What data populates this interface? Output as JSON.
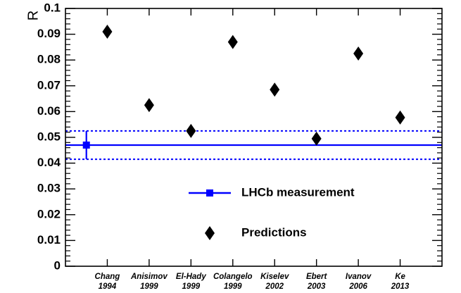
{
  "chart_data": {
    "type": "scatter",
    "title": "",
    "xlabel": "",
    "ylabel": "R",
    "ylim": [
      0,
      0.1
    ],
    "yticks": [
      "0",
      "0.01",
      "0.02",
      "0.03",
      "0.04",
      "0.05",
      "0.06",
      "0.07",
      "0.08",
      "0.09",
      "0.1"
    ],
    "categories": [
      {
        "name": "Chang",
        "year": "1994"
      },
      {
        "name": "Anisimov",
        "year": "1999"
      },
      {
        "name": "El-Hady",
        "year": "1999"
      },
      {
        "name": "Colangelo",
        "year": "1999"
      },
      {
        "name": "Kiselev",
        "year": "2002"
      },
      {
        "name": "Ebert",
        "year": "2003"
      },
      {
        "name": "Ivanov",
        "year": "2006"
      },
      {
        "name": "Ke",
        "year": "2013"
      }
    ],
    "series": [
      {
        "name": "Predictions",
        "marker": "diamond",
        "color": "#000000",
        "values": [
          0.091,
          0.0625,
          0.0525,
          0.087,
          0.0685,
          0.0495,
          0.0825,
          0.0577
        ]
      },
      {
        "name": "LHCb measurement",
        "marker": "square",
        "color": "#0000ff",
        "value": 0.047,
        "error": 0.0055,
        "band": [
          0.0415,
          0.0525
        ]
      }
    ],
    "legend": {
      "placement": "bottom-center"
    },
    "grid": false
  }
}
